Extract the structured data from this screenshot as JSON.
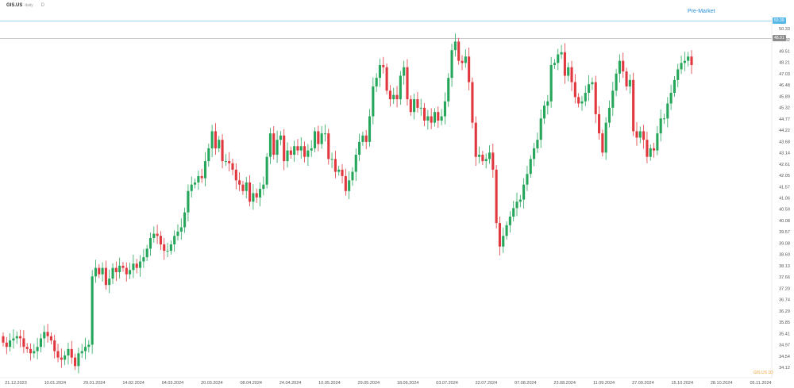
{
  "header": {
    "symbol": "GIS.US",
    "symbol_sub": "daily",
    "timeframe": "D"
  },
  "premarket_label": "Pre-Market",
  "price_tags": {
    "high": "50.39",
    "current": "48.91"
  },
  "stamp": "GIS.US 1D",
  "chart_data": {
    "type": "candlestick",
    "title": "",
    "ylim": [
      34.12,
      50.77
    ],
    "y_ticks": [
      "50.33",
      "49.82",
      "49.51",
      "48.21",
      "47.03",
      "46.48",
      "45.89",
      "45.32",
      "44.77",
      "44.22",
      "43.68",
      "43.14",
      "42.61",
      "42.05",
      "41.57",
      "41.06",
      "40.59",
      "40.08",
      "39.57",
      "39.08",
      "38.60",
      "38.13",
      "37.66",
      "37.20",
      "36.74",
      "36.29",
      "35.85",
      "35.41",
      "34.97",
      "34.54",
      "34.12"
    ],
    "x_ticks": [
      "21.12.2023",
      "10.01.2024",
      "29.01.2024",
      "14.02.2024",
      "04.03.2024",
      "20.03.2024",
      "08.04.2024",
      "24.04.2024",
      "10.05.2024",
      "29.05.2024",
      "18.06.2024",
      "03.07.2024",
      "22.07.2024",
      "07.08.2024",
      "23.08.2024",
      "11.09.2024",
      "27.09.2024",
      "15.10.2024",
      "28.10.2024",
      "05.11.2024"
    ],
    "closes": [
      35.8,
      35.6,
      35.9,
      36.0,
      36.1,
      36.0,
      35.6,
      35.5,
      35.3,
      35.4,
      35.6,
      36.0,
      36.3,
      36.1,
      35.9,
      35.4,
      35.1,
      35.0,
      35.2,
      35.5,
      35.1,
      34.7,
      35.3,
      35.4,
      35.6,
      35.7,
      38.9,
      39.3,
      39.0,
      39.3,
      38.5,
      38.8,
      39.3,
      39.1,
      39.4,
      39.3,
      39.0,
      39.2,
      39.5,
      39.3,
      39.6,
      39.8,
      40.2,
      40.7,
      40.9,
      40.8,
      40.4,
      40.1,
      40.1,
      40.4,
      40.8,
      41.0,
      41.2,
      41.9,
      42.9,
      43.2,
      43.3,
      43.6,
      43.5,
      44.3,
      44.9,
      45.7,
      44.9,
      45.3,
      44.3,
      44.3,
      44.2,
      43.9,
      43.4,
      43.2,
      42.9,
      43.3,
      42.4,
      42.8,
      42.6,
      43.0,
      43.2,
      44.5,
      45.6,
      44.6,
      45.3,
      45.5,
      44.3,
      44.8,
      44.6,
      45.0,
      44.8,
      45.0,
      44.5,
      44.8,
      44.9,
      45.7,
      45.1,
      45.6,
      45.6,
      44.4,
      44.4,
      43.8,
      43.9,
      43.6,
      42.9,
      43.4,
      43.8,
      44.6,
      45.2,
      45.5,
      45.2,
      46.4,
      47.8,
      48.2,
      48.8,
      48.7,
      47.6,
      47.2,
      47.4,
      47.2,
      48.3,
      48.7,
      47.2,
      46.6,
      47.2,
      46.8,
      46.8,
      46.2,
      46.4,
      46.1,
      46.6,
      46.2,
      46.4,
      47.1,
      48.2,
      49.5,
      49.9,
      49.0,
      48.9,
      49.2,
      48.0,
      46.1,
      44.5,
      44.6,
      44.3,
      44.4,
      44.7,
      43.9,
      41.4,
      40.3,
      40.8,
      41.3,
      41.7,
      42.1,
      42.4,
      42.5,
      43.2,
      43.7,
      44.4,
      44.9,
      45.3,
      46.3,
      46.9,
      47.1,
      48.8,
      48.9,
      49.3,
      49.4,
      48.3,
      48.7,
      48.0,
      47.3,
      47.0,
      47.1,
      47.5,
      47.9,
      48.0,
      46.5,
      45.6,
      44.7,
      46.1,
      46.8,
      47.6,
      48.4,
      49.0,
      48.5,
      47.8,
      48.1,
      45.7,
      45.4,
      45.7,
      45.3,
      44.5,
      44.9,
      44.8,
      45.6,
      46.3,
      46.3,
      47.0,
      47.5,
      48.1,
      48.6,
      48.9,
      49.0,
      49.2,
      48.8
    ]
  }
}
